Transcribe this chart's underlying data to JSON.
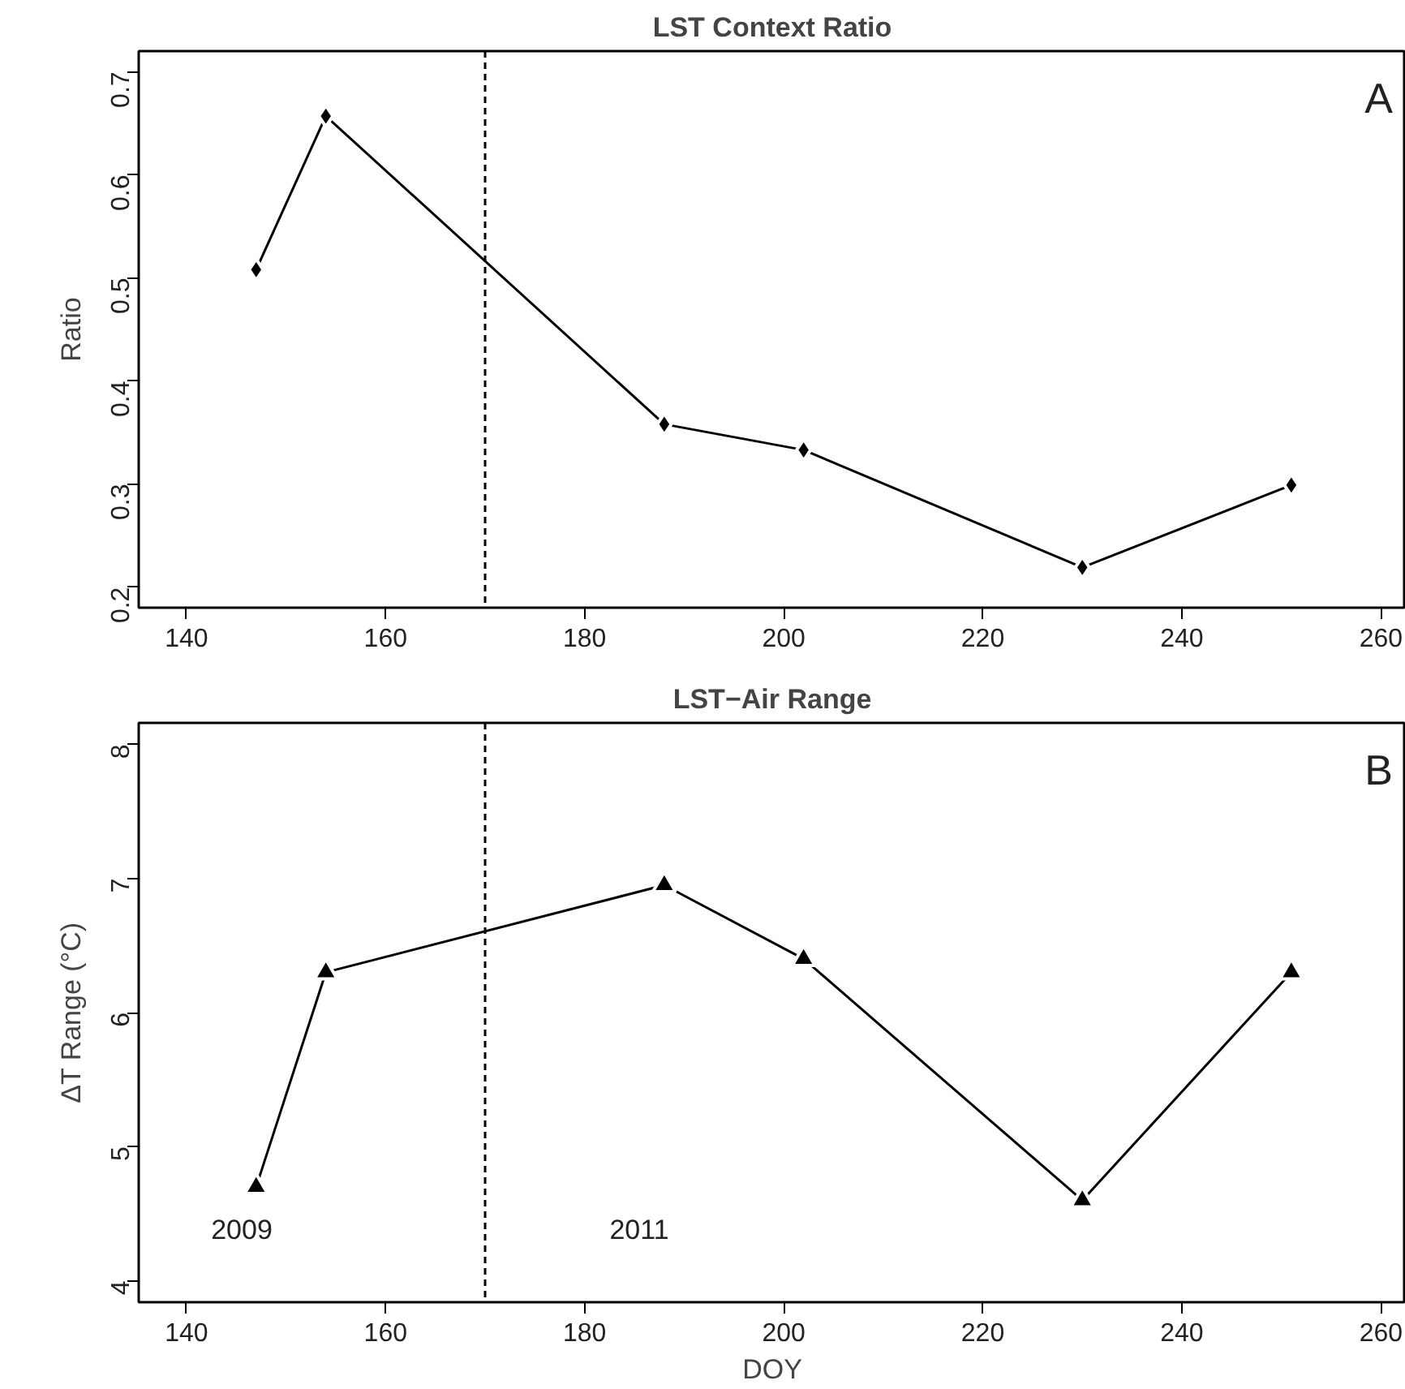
{
  "chart_data": [
    {
      "type": "line",
      "title": "LST Context Ratio",
      "ylabel": "Ratio",
      "x": [
        147,
        154,
        188,
        202,
        230,
        251
      ],
      "series": [
        {
          "color": "#000000",
          "values": [
            0.508,
            0.657,
            0.358,
            0.333,
            0.219,
            0.299
          ]
        }
      ],
      "marker": "diamond",
      "line_style": "solid",
      "grid": false,
      "xlim": [
        135.2,
        262.5
      ],
      "xticks": [
        140,
        160,
        180,
        200,
        220,
        240,
        260
      ],
      "ylim": [
        0.18,
        0.72
      ],
      "yticks": [
        0.2,
        0.3,
        0.4,
        0.5,
        0.6,
        0.7
      ],
      "ref_lines": [
        {
          "axis": "x",
          "value": 170,
          "line_style": "dashed",
          "color": "#000000"
        }
      ],
      "annotations": [
        "A"
      ]
    },
    {
      "type": "line",
      "title": "LST−Air Range",
      "xlabel": "DOY",
      "ylabel": "ΔT Range (°C)",
      "x": [
        147,
        154,
        188,
        202,
        230,
        251
      ],
      "series": [
        {
          "color": "#000000",
          "values": [
            4.7,
            6.3,
            6.95,
            6.4,
            4.6,
            6.3
          ]
        }
      ],
      "marker": "triangle",
      "line_style": "solid",
      "grid": false,
      "xlim": [
        135.2,
        262.5
      ],
      "xticks": [
        140,
        160,
        180,
        200,
        220,
        240,
        260
      ],
      "ylim": [
        3.84,
        8.16
      ],
      "yticks": [
        4,
        5,
        6,
        7,
        8
      ],
      "ref_lines": [
        {
          "axis": "x",
          "value": 170,
          "line_style": "dashed",
          "color": "#000000"
        }
      ],
      "annotations": [
        "B",
        "2009",
        "2011"
      ]
    }
  ]
}
